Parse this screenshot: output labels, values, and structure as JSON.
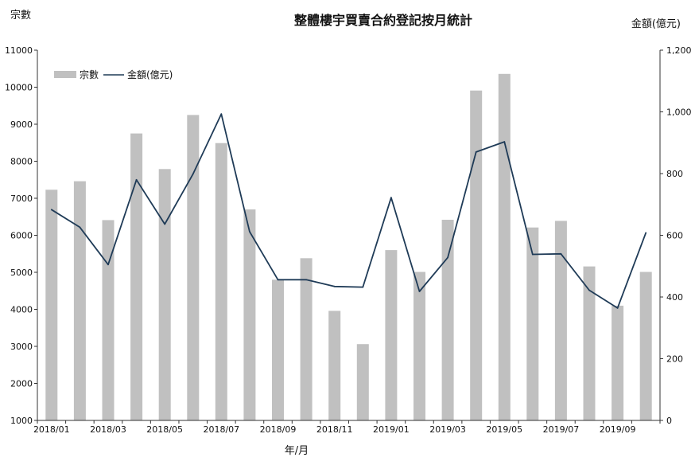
{
  "chart_data": {
    "type": "bar+line",
    "title": "整體樓宇買賣合約登記按月統計",
    "xlabel": "年/月",
    "ylabel_left": "宗數",
    "ylabel_right": "金額(億元)",
    "categories": [
      "2018/01",
      "2018/02",
      "2018/03",
      "2018/04",
      "2018/05",
      "2018/06",
      "2018/07",
      "2018/08",
      "2018/09",
      "2018/10",
      "2018/11",
      "2018/12",
      "2019/01",
      "2019/02",
      "2019/03",
      "2019/04",
      "2019/05",
      "2019/06",
      "2019/07",
      "2019/08",
      "2019/09",
      "2019/10"
    ],
    "x_tick_labels": [
      "2018/01",
      "2018/03",
      "2018/05",
      "2018/07",
      "2018/09",
      "2018/11",
      "2019/01",
      "2019/03",
      "2019/05",
      "2019/07",
      "2019/09"
    ],
    "left_axis": {
      "min": 1000,
      "max": 11000,
      "ticks": [
        1000,
        2000,
        3000,
        4000,
        5000,
        6000,
        7000,
        8000,
        9000,
        10000,
        11000
      ],
      "tick_labels": [
        "1000",
        "2000",
        "3000",
        "4000",
        "5000",
        "6000",
        "7000",
        "8000",
        "9000",
        "10000",
        "11000"
      ]
    },
    "right_axis": {
      "min": 0,
      "max": 1200,
      "ticks": [
        0,
        200,
        400,
        600,
        800,
        1000,
        1200
      ],
      "tick_labels": [
        "0",
        "200",
        "400",
        "600",
        "800",
        "1,000",
        "1,200"
      ]
    },
    "series": [
      {
        "name": "宗數",
        "type": "bar",
        "axis": "left",
        "color": "#c0c0c0",
        "values": [
          7230,
          7460,
          6410,
          8750,
          7790,
          9250,
          8490,
          6700,
          4800,
          5380,
          3960,
          3060,
          5600,
          5010,
          6420,
          9910,
          10360,
          6210,
          6390,
          5160,
          4100,
          5010
        ]
      },
      {
        "name": "金額(億元)",
        "legend_label": "金額(億元)",
        "type": "line",
        "axis": "right",
        "color": "#1f3b57",
        "values": [
          683,
          626,
          505,
          780,
          636,
          799,
          993,
          612,
          456,
          456,
          434,
          432,
          722,
          418,
          528,
          870,
          903,
          538,
          540,
          422,
          364,
          608
        ]
      }
    ],
    "legend": {
      "position": "top-left",
      "entries": [
        "宗數",
        "金額(億元)"
      ]
    },
    "grid": false
  }
}
